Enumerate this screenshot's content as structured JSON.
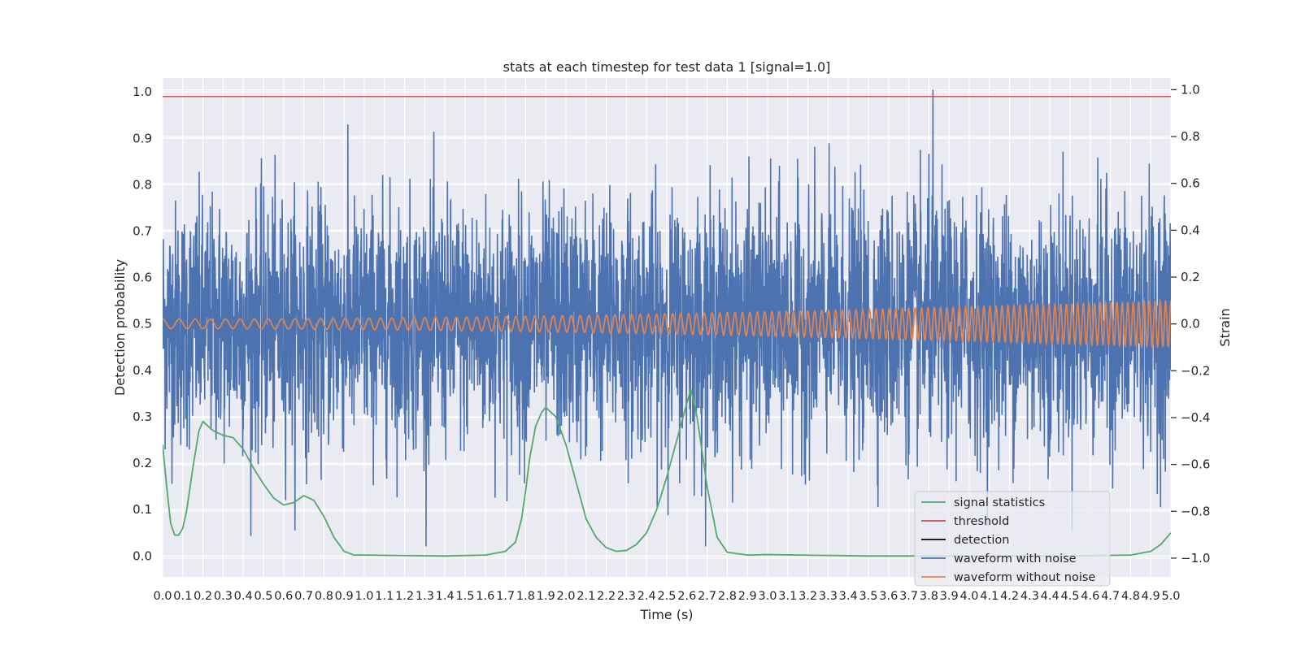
{
  "chart_data": {
    "type": "line",
    "title": "stats at each timestep for test data 1 [signal=1.0]",
    "xlabel": "Time (s)",
    "ylabel_left": "Detection probability",
    "ylabel_right": "Strain",
    "xlim": [
      0.0,
      5.0
    ],
    "ylim_left": [
      -0.045,
      1.03
    ],
    "ylim_right": [
      -1.08,
      1.05
    ],
    "x_ticks": [
      "0.0",
      "0.1",
      "0.2",
      "0.3",
      "0.4",
      "0.5",
      "0.6",
      "0.7",
      "0.8",
      "0.9",
      "1.0",
      "1.1",
      "1.2",
      "1.3",
      "1.4",
      "1.5",
      "1.6",
      "1.7",
      "1.8",
      "1.9",
      "2.0",
      "2.1",
      "2.2",
      "2.3",
      "2.4",
      "2.5",
      "2.6",
      "2.7",
      "2.8",
      "2.9",
      "3.0",
      "3.1",
      "3.2",
      "3.3",
      "3.4",
      "3.5",
      "3.6",
      "3.7",
      "3.8",
      "3.9",
      "4.0",
      "4.1",
      "4.2",
      "4.3",
      "4.4",
      "4.5",
      "4.6",
      "4.7",
      "4.8",
      "4.9",
      "5.0"
    ],
    "y_ticks_left": [
      "0.0",
      "0.1",
      "0.2",
      "0.3",
      "0.4",
      "0.5",
      "0.6",
      "0.7",
      "0.8",
      "0.9",
      "1.0"
    ],
    "y_ticks_right": [
      "−1.0",
      "−0.8",
      "−0.6",
      "−0.4",
      "−0.2",
      "0.0",
      "0.2",
      "0.4",
      "0.6",
      "0.8",
      "1.0"
    ],
    "grid": true,
    "legend_placement": "lower-right",
    "colors": {
      "plot_background": "#eaeaf2",
      "grid": "#ffffff",
      "signal_statistics": "#55a868",
      "threshold": "#c44e52",
      "detection": "#000000",
      "waveform_with_noise": "#4c72b0",
      "waveform_without_noise": "#dd8452"
    },
    "series": [
      {
        "name": "signal statistics",
        "axis": "left",
        "x": [
          0.0,
          0.02,
          0.04,
          0.06,
          0.08,
          0.1,
          0.12,
          0.15,
          0.18,
          0.2,
          0.25,
          0.3,
          0.35,
          0.4,
          0.45,
          0.5,
          0.55,
          0.6,
          0.65,
          0.7,
          0.75,
          0.8,
          0.85,
          0.9,
          0.95,
          1.0,
          1.2,
          1.4,
          1.6,
          1.7,
          1.75,
          1.78,
          1.8,
          1.82,
          1.85,
          1.88,
          1.9,
          1.95,
          2.0,
          2.05,
          2.1,
          2.15,
          2.2,
          2.25,
          2.3,
          2.35,
          2.4,
          2.45,
          2.5,
          2.55,
          2.6,
          2.62,
          2.65,
          2.7,
          2.75,
          2.8,
          2.9,
          3.0,
          3.5,
          4.0,
          4.5,
          4.8,
          4.9,
          4.95,
          5.0
        ],
        "values": [
          0.24,
          0.15,
          0.07,
          0.045,
          0.045,
          0.06,
          0.1,
          0.19,
          0.27,
          0.29,
          0.27,
          0.26,
          0.255,
          0.23,
          0.19,
          0.155,
          0.125,
          0.11,
          0.115,
          0.13,
          0.12,
          0.085,
          0.04,
          0.01,
          0.002,
          0.002,
          0.001,
          0.0,
          0.002,
          0.01,
          0.03,
          0.08,
          0.14,
          0.21,
          0.28,
          0.31,
          0.32,
          0.3,
          0.24,
          0.16,
          0.08,
          0.04,
          0.018,
          0.01,
          0.012,
          0.025,
          0.05,
          0.1,
          0.17,
          0.25,
          0.33,
          0.36,
          0.3,
          0.15,
          0.04,
          0.008,
          0.002,
          0.003,
          0.0,
          0.0,
          0.0,
          0.002,
          0.01,
          0.025,
          0.05
        ]
      },
      {
        "name": "threshold",
        "axis": "left",
        "x": [
          0.0,
          5.0
        ],
        "values": [
          0.99,
          0.99
        ]
      },
      {
        "name": "detection",
        "axis": "left",
        "x": [],
        "values": []
      },
      {
        "name": "waveform with noise",
        "axis": "right",
        "noise_amplitude_std": 0.26,
        "x_range": [
          0.0,
          5.0
        ],
        "peak": {
          "x": 3.82,
          "value": 1.0
        }
      },
      {
        "name": "waveform without noise",
        "axis": "right",
        "x_range": [
          0.0,
          5.0
        ],
        "amplitude_start": 0.02,
        "amplitude_end": 0.1,
        "frequency_start_hz": 12,
        "frequency_end_hz": 38
      }
    ]
  }
}
